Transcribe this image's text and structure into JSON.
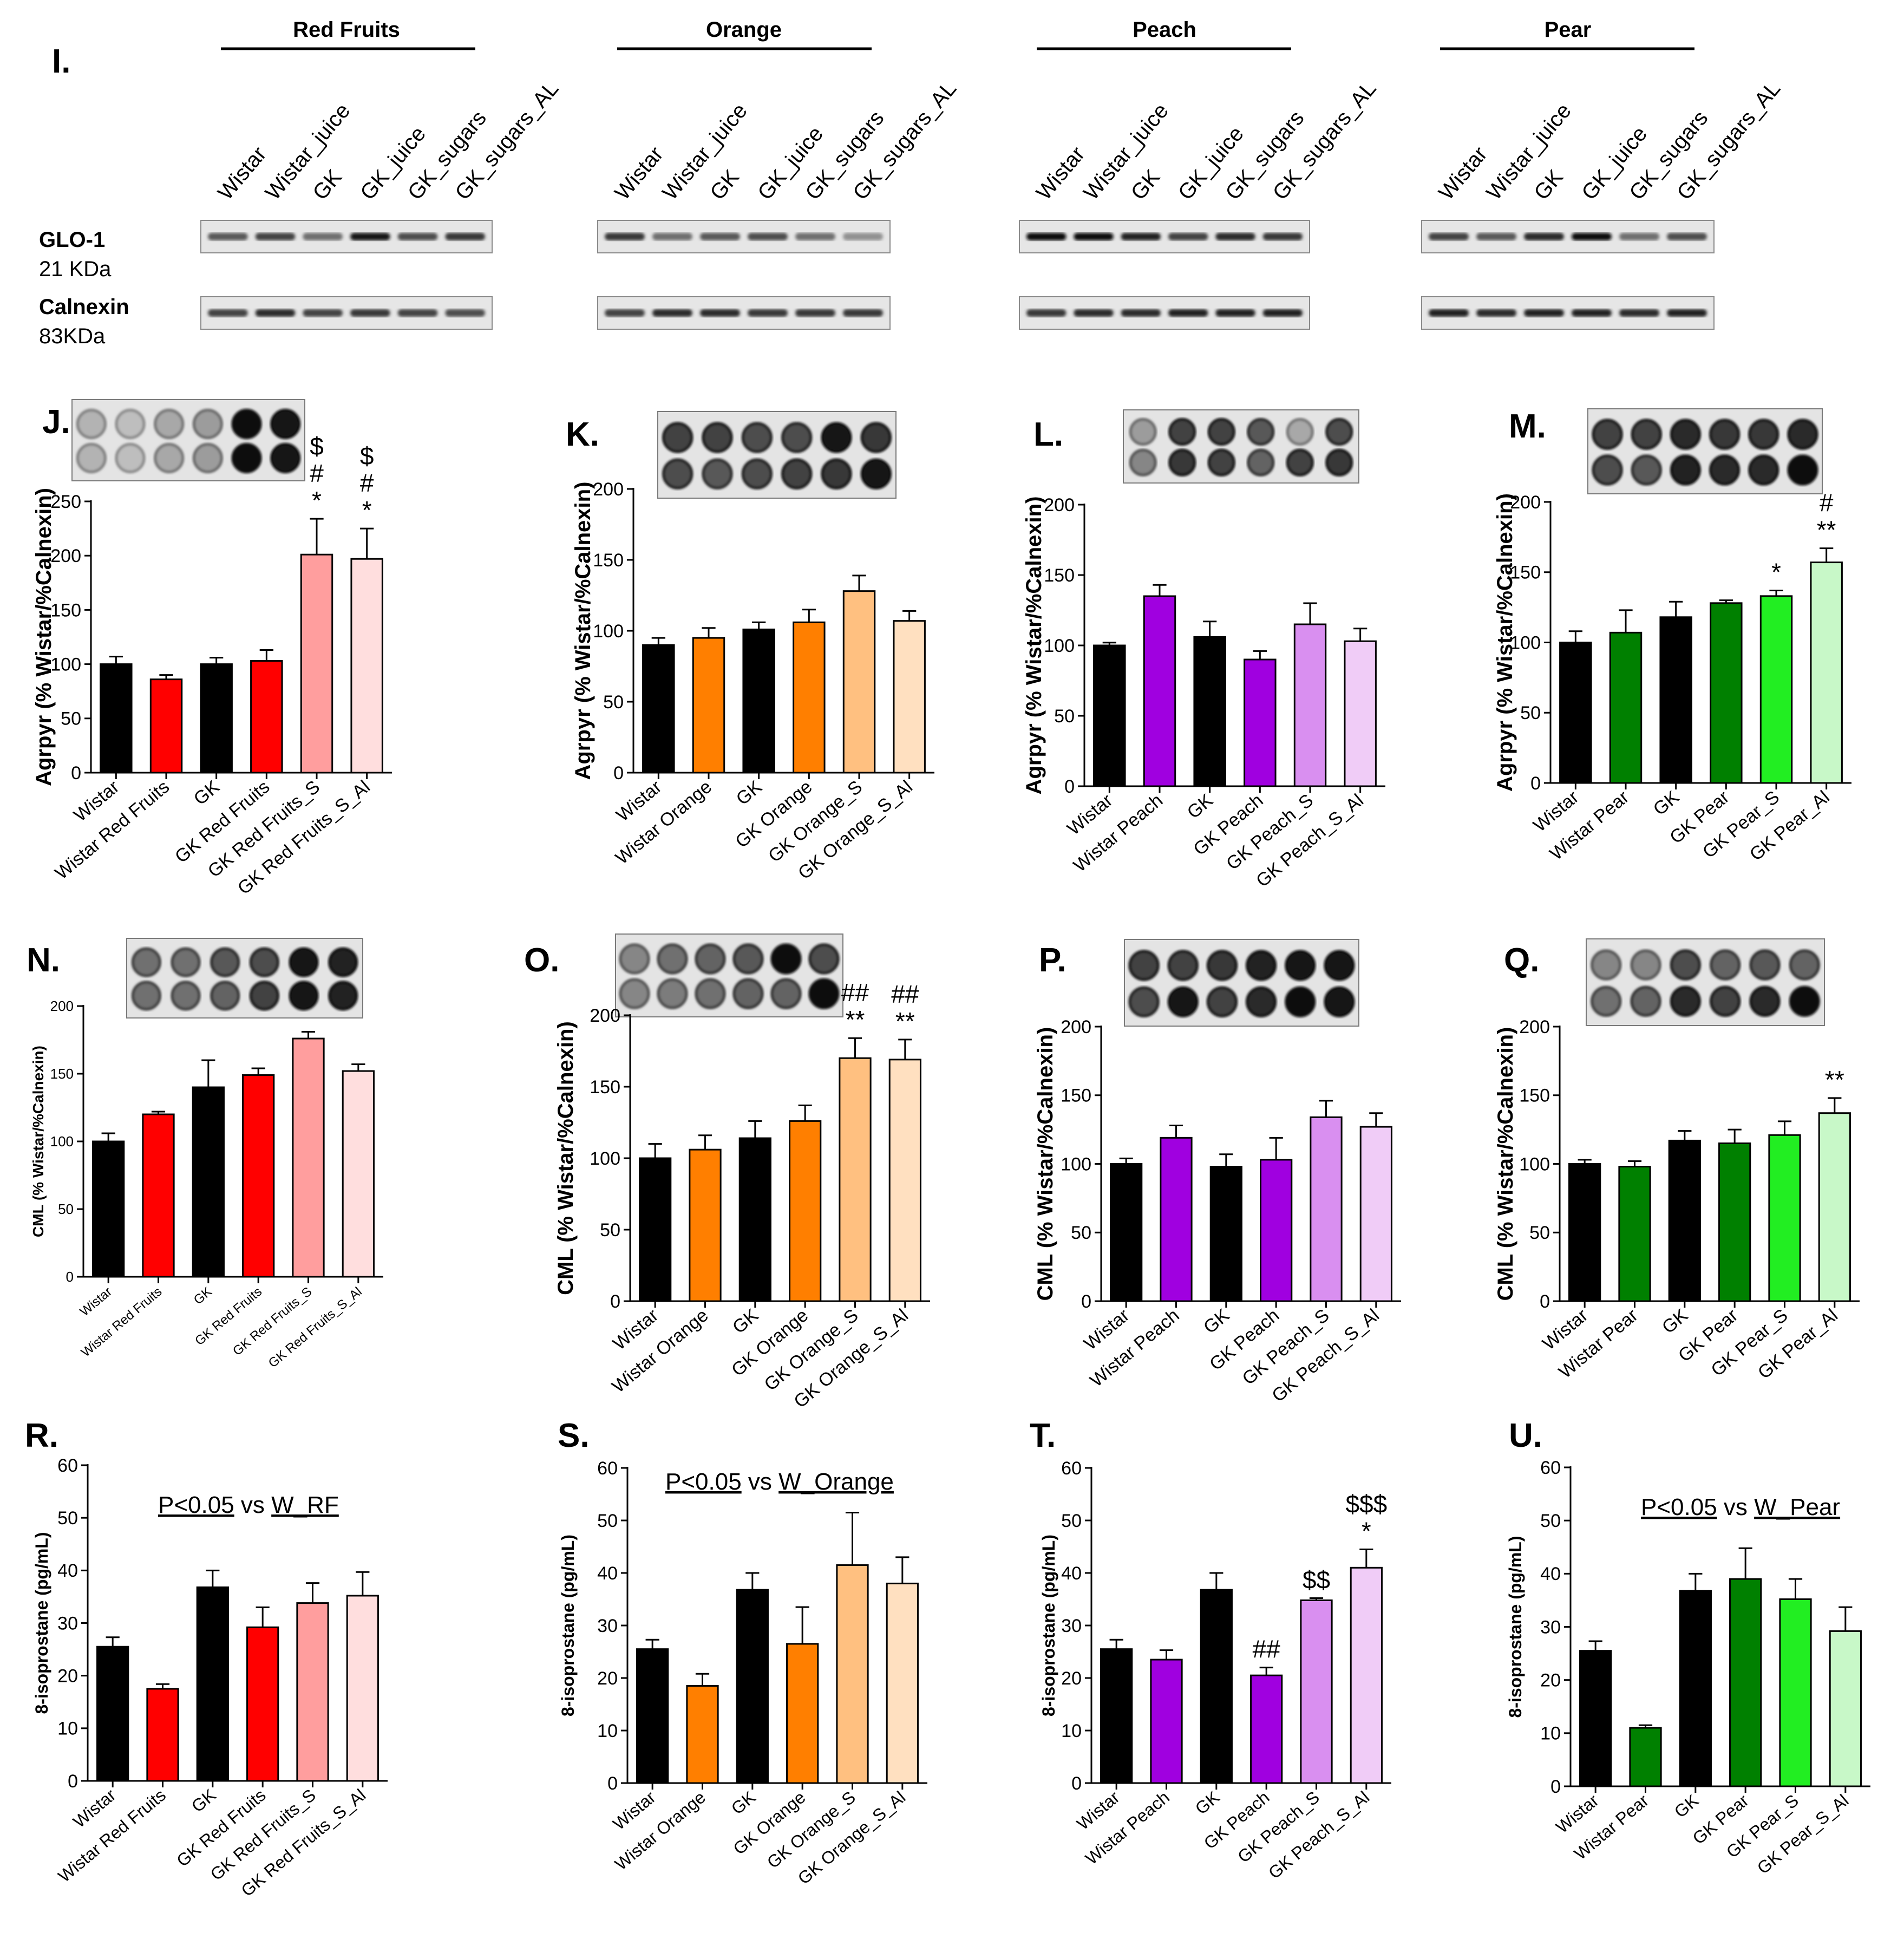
{
  "western": {
    "panel_label": "I.",
    "groups": [
      {
        "name": "Red Fruits",
        "lanes": [
          "Wistar",
          "Wistar_juice",
          "GK",
          "GK_juice",
          "GK_sugars",
          "GK_sugars_AL"
        ],
        "glo1": [
          0.65,
          0.75,
          0.55,
          0.95,
          0.7,
          0.8
        ],
        "calnexin": [
          0.75,
          0.85,
          0.75,
          0.8,
          0.75,
          0.7
        ]
      },
      {
        "name": "Orange",
        "lanes": [
          "Wistar",
          "Wistar_juice",
          "GK",
          "GK_juice",
          "GK_sugars",
          "GK_sugars_AL"
        ],
        "glo1": [
          0.8,
          0.55,
          0.65,
          0.7,
          0.55,
          0.4
        ],
        "calnexin": [
          0.75,
          0.85,
          0.85,
          0.8,
          0.8,
          0.8
        ]
      },
      {
        "name": "Peach",
        "lanes": [
          "Wistar",
          "Wistar_juice",
          "GK",
          "GK_juice",
          "GK_sugars",
          "GK_sugars_AL"
        ],
        "glo1": [
          1.0,
          1.0,
          0.9,
          0.75,
          0.85,
          0.8
        ],
        "calnexin": [
          0.8,
          0.85,
          0.85,
          0.9,
          0.9,
          0.9
        ]
      },
      {
        "name": "Pear",
        "lanes": [
          "Wistar",
          "Wistar_juice",
          "GK",
          "GK_juice",
          "GK_sugars",
          "GK_sugars_AL"
        ],
        "glo1": [
          0.75,
          0.65,
          0.85,
          1.0,
          0.55,
          0.7
        ],
        "calnexin": [
          0.9,
          0.85,
          0.9,
          0.9,
          0.85,
          0.9
        ]
      }
    ],
    "rows": [
      {
        "name": "GLO-1",
        "size": "21 KDa"
      },
      {
        "name": "Calnexin",
        "size": "83KDa"
      }
    ]
  },
  "chart_data": [
    {
      "panel": "J.",
      "type": "bar",
      "ylabel": "Agrpyr (% Wistar/%Calnexin)",
      "ylim": [
        0,
        250
      ],
      "ticks": [
        0,
        50,
        100,
        150,
        200,
        250
      ],
      "categories": [
        "Wistar",
        "Wistar Red Fruits",
        "GK",
        "GK Red Fruits",
        "GK Red Fruits_S",
        "GK Red Fruits_S_Al"
      ],
      "values": [
        100,
        86,
        100,
        103,
        201,
        197
      ],
      "errors": [
        7,
        4,
        6,
        10,
        33,
        28
      ],
      "colors": [
        "#000000",
        "#ff0000",
        "#000000",
        "#ff0000",
        "#ff9e9e",
        "#ffdede"
      ],
      "annotations": [
        [],
        [],
        [],
        [],
        [
          "*",
          "#",
          "$"
        ],
        [
          "*",
          "#",
          "$"
        ]
      ],
      "dots": [
        [
          0.25,
          0.2,
          0.3,
          0.35,
          1.0,
          0.95
        ],
        [
          0.25,
          0.2,
          0.3,
          0.35,
          1.0,
          0.95
        ]
      ]
    },
    {
      "panel": "K.",
      "type": "bar",
      "ylabel": "Agrpyr (% Wistar/%Calnexin)",
      "ylim": [
        0,
        200
      ],
      "ticks": [
        0,
        50,
        100,
        150,
        200
      ],
      "categories": [
        "Wistar",
        "Wistar Orange",
        "GK",
        "GK Orange",
        "GK Orange_S",
        "GK Orange_S_Al"
      ],
      "values": [
        90,
        95,
        101,
        106,
        128,
        107
      ],
      "errors": [
        5,
        7,
        5,
        9,
        11,
        7
      ],
      "colors": [
        "#000000",
        "#ff7f00",
        "#000000",
        "#ff7f00",
        "#ffc080",
        "#ffe0c0"
      ],
      "annotations": [
        [],
        [],
        [],
        [],
        [],
        []
      ],
      "dots": [
        [
          0.75,
          0.75,
          0.7,
          0.7,
          0.95,
          0.8
        ],
        [
          0.7,
          0.65,
          0.7,
          0.75,
          0.8,
          0.95
        ]
      ]
    },
    {
      "panel": "L.",
      "type": "bar",
      "ylabel": "Agrpyr (% Wistar/%Calnexin)",
      "ylim": [
        0,
        200
      ],
      "ticks": [
        0,
        50,
        100,
        150,
        200
      ],
      "categories": [
        "Wistar",
        "Wistar Peach",
        "GK",
        "GK Peach",
        "GK Peach_S",
        "GK Peach_S_Al"
      ],
      "values": [
        100,
        135,
        106,
        90,
        115,
        103
      ],
      "errors": [
        2,
        8,
        11,
        6,
        15,
        9
      ],
      "colors": [
        "#000000",
        "#a000e0",
        "#000000",
        "#a000e0",
        "#d98ff0",
        "#f0ccf7"
      ],
      "annotations": [
        [],
        [],
        [],
        [],
        [],
        []
      ],
      "dots": [
        [
          0.35,
          0.75,
          0.75,
          0.65,
          0.3,
          0.7
        ],
        [
          0.45,
          0.8,
          0.75,
          0.6,
          0.75,
          0.8
        ]
      ]
    },
    {
      "panel": "M.",
      "type": "bar",
      "ylabel": "Agrpyr (% Wistar/%Calnexin)",
      "ylim": [
        0,
        200
      ],
      "ticks": [
        0,
        50,
        100,
        150,
        200
      ],
      "categories": [
        "Wistar",
        "Wistar Pear",
        "GK",
        "GK Pear",
        "GK Pear_S",
        "GK Pear_Al"
      ],
      "values": [
        100,
        107,
        118,
        128,
        133,
        157
      ],
      "errors": [
        8,
        16,
        11,
        2,
        4,
        10
      ],
      "colors": [
        "#000000",
        "#008000",
        "#000000",
        "#008000",
        "#22ee22",
        "#c8f8c8"
      ],
      "annotations": [
        [],
        [],
        [],
        [],
        [
          "*"
        ],
        [
          "**",
          "#"
        ]
      ],
      "dots": [
        [
          0.75,
          0.75,
          0.85,
          0.8,
          0.8,
          0.85
        ],
        [
          0.7,
          0.65,
          0.9,
          0.85,
          0.85,
          1.0
        ]
      ]
    },
    {
      "panel": "N.",
      "type": "bar",
      "ylabel": "CML (% Wistar/%Calnexin)",
      "ylim": [
        0,
        200
      ],
      "ticks": [
        0,
        50,
        100,
        150,
        200
      ],
      "categories": [
        "Wistar",
        "Wistar Red Fruits",
        "GK",
        "GK Red Fruits",
        "GK Red Fruits_S",
        "GK Red Fruits_S_Al"
      ],
      "values": [
        100,
        120,
        140,
        149,
        176,
        152
      ],
      "errors": [
        6,
        2,
        20,
        5,
        5,
        5
      ],
      "colors": [
        "#000000",
        "#ff0000",
        "#000000",
        "#ff0000",
        "#ff9e9e",
        "#ffdede"
      ],
      "annotations": [
        [],
        [],
        [],
        [],
        [],
        []
      ],
      "dots": [
        [
          0.55,
          0.55,
          0.65,
          0.7,
          0.95,
          0.9
        ],
        [
          0.55,
          0.55,
          0.6,
          0.75,
          0.95,
          0.9
        ]
      ]
    },
    {
      "panel": "O.",
      "type": "bar",
      "ylabel": "CML (% Wistar/%Calnexin)",
      "ylim": [
        0,
        200
      ],
      "ticks": [
        0,
        50,
        100,
        150,
        200
      ],
      "categories": [
        "Wistar",
        "Wistar Orange",
        "GK",
        "GK Orange",
        "GK Orange_S",
        "GK Orange_S_Al"
      ],
      "values": [
        100,
        106,
        114,
        126,
        170,
        169
      ],
      "errors": [
        10,
        10,
        12,
        11,
        14,
        14
      ],
      "colors": [
        "#000000",
        "#ff7f00",
        "#000000",
        "#ff7f00",
        "#ffc080",
        "#ffe0c0"
      ],
      "annotations": [
        [],
        [],
        [],
        [],
        [
          "**",
          "##"
        ],
        [
          "**",
          "##"
        ]
      ],
      "dots": [
        [
          0.45,
          0.55,
          0.6,
          0.65,
          1.0,
          0.7
        ],
        [
          0.45,
          0.5,
          0.55,
          0.6,
          0.6,
          1.0
        ]
      ]
    },
    {
      "panel": "P.",
      "type": "bar",
      "ylabel": "CML (% Wistar/%Calnexin)",
      "ylim": [
        0,
        200
      ],
      "ticks": [
        0,
        50,
        100,
        150,
        200
      ],
      "categories": [
        "Wistar",
        "Wistar Peach",
        "GK",
        "GK Peach",
        "GK Peach_S",
        "GK Peach_S_Al"
      ],
      "values": [
        100,
        119,
        98,
        103,
        134,
        127
      ],
      "errors": [
        4,
        9,
        9,
        16,
        12,
        10
      ],
      "colors": [
        "#000000",
        "#a000e0",
        "#000000",
        "#a000e0",
        "#d98ff0",
        "#f0ccf7"
      ],
      "annotations": [
        [],
        [],
        [],
        [],
        [],
        []
      ],
      "dots": [
        [
          0.75,
          0.75,
          0.8,
          0.9,
          0.95,
          0.95
        ],
        [
          0.7,
          0.95,
          0.75,
          0.85,
          1.0,
          0.95
        ]
      ]
    },
    {
      "panel": "Q.",
      "type": "bar",
      "ylabel": "CML (% Wistar/%Calnexin)",
      "ylim": [
        0,
        200
      ],
      "ticks": [
        0,
        50,
        100,
        150,
        200
      ],
      "categories": [
        "Wistar",
        "Wistar Pear",
        "GK",
        "GK Pear",
        "GK Pear_S",
        "GK Pear_Al"
      ],
      "values": [
        100,
        98,
        117,
        115,
        121,
        137
      ],
      "errors": [
        3,
        4,
        7,
        10,
        10,
        11
      ],
      "colors": [
        "#000000",
        "#008000",
        "#000000",
        "#008000",
        "#22ee22",
        "#c8f8c8"
      ],
      "annotations": [
        [],
        [],
        [],
        [],
        [],
        [
          "**"
        ]
      ],
      "dots": [
        [
          0.45,
          0.45,
          0.7,
          0.6,
          0.65,
          0.6
        ],
        [
          0.55,
          0.6,
          0.85,
          0.75,
          0.85,
          1.0
        ]
      ]
    },
    {
      "panel": "R.",
      "type": "bar",
      "ylabel": "8-isoprostane (pg/mL)",
      "ylim": [
        0,
        60
      ],
      "ticks": [
        0,
        10,
        20,
        30,
        40,
        50,
        60
      ],
      "categories": [
        "Wistar",
        "Wistar Red Fruits",
        "GK",
        "GK Red Fruits",
        "GK Red Fruits_S",
        "GK Red Fruits_S_Al"
      ],
      "values": [
        25.5,
        17.5,
        36.8,
        29.2,
        33.8,
        35.2
      ],
      "errors": [
        1.8,
        0.9,
        3.2,
        3.8,
        3.8,
        4.5
      ],
      "colors": [
        "#000000",
        "#ff0000",
        "#000000",
        "#ff0000",
        "#ff9e9e",
        "#ffdede"
      ],
      "annotations": [
        [],
        [],
        [],
        [],
        [],
        []
      ],
      "note": {
        "prefix": "P<0.05",
        "mid": " vs ",
        "suffix": "W_RF"
      }
    },
    {
      "panel": "S.",
      "type": "bar",
      "ylabel": "8-isoprostane (pg/mL)",
      "ylim": [
        0,
        60
      ],
      "ticks": [
        0,
        10,
        20,
        30,
        40,
        50,
        60
      ],
      "categories": [
        "Wistar",
        "Wistar Orange",
        "GK",
        "GK Orange",
        "GK Orange_S",
        "GK Orange_S_Al"
      ],
      "values": [
        25.5,
        18.5,
        36.8,
        26.5,
        41.5,
        38.0
      ],
      "errors": [
        1.8,
        2.3,
        3.2,
        7.0,
        10.0,
        5.0
      ],
      "colors": [
        "#000000",
        "#ff7f00",
        "#000000",
        "#ff7f00",
        "#ffc080",
        "#ffe0c0"
      ],
      "annotations": [
        [],
        [],
        [],
        [],
        [],
        []
      ],
      "note": {
        "prefix": "P<0.05",
        "mid": " vs ",
        "suffix": "W_Orange"
      }
    },
    {
      "panel": "T.",
      "type": "bar",
      "ylabel": "8-isoprostane (pg/mL)",
      "ylim": [
        0,
        60
      ],
      "ticks": [
        0,
        10,
        20,
        30,
        40,
        50,
        60
      ],
      "categories": [
        "Wistar",
        "Wistar Peach",
        "GK",
        "GK Peach",
        "GK Peach_S",
        "GK Peach_S_Al"
      ],
      "values": [
        25.5,
        23.5,
        36.8,
        20.5,
        34.8,
        41.0
      ],
      "errors": [
        1.8,
        1.8,
        3.2,
        1.5,
        0.4,
        3.5
      ],
      "colors": [
        "#000000",
        "#a000e0",
        "#000000",
        "#a000e0",
        "#d98ff0",
        "#f0ccf7"
      ],
      "annotations": [
        [],
        [],
        [],
        [
          "##"
        ],
        [
          "$$"
        ],
        [
          "*",
          "$$$"
        ]
      ]
    },
    {
      "panel": "U.",
      "type": "bar",
      "ylabel": "8-isoprostane (pg/mL)",
      "ylim": [
        0,
        60
      ],
      "ticks": [
        0,
        10,
        20,
        30,
        40,
        50,
        60
      ],
      "categories": [
        "Wistar",
        "Wistar Pear",
        "GK",
        "GK Pear",
        "GK Pear_S",
        "GK Pear_S_Al"
      ],
      "values": [
        25.5,
        11.0,
        36.8,
        39.0,
        35.2,
        29.2
      ],
      "errors": [
        1.8,
        0.5,
        3.2,
        5.8,
        3.8,
        4.5
      ],
      "colors": [
        "#000000",
        "#008000",
        "#000000",
        "#008000",
        "#22ee22",
        "#c8f8c8"
      ],
      "annotations": [
        [],
        [],
        [],
        [],
        [],
        []
      ],
      "note": {
        "prefix": "P<0.05",
        "mid": " vs ",
        "suffix": "W_Pear"
      }
    }
  ]
}
